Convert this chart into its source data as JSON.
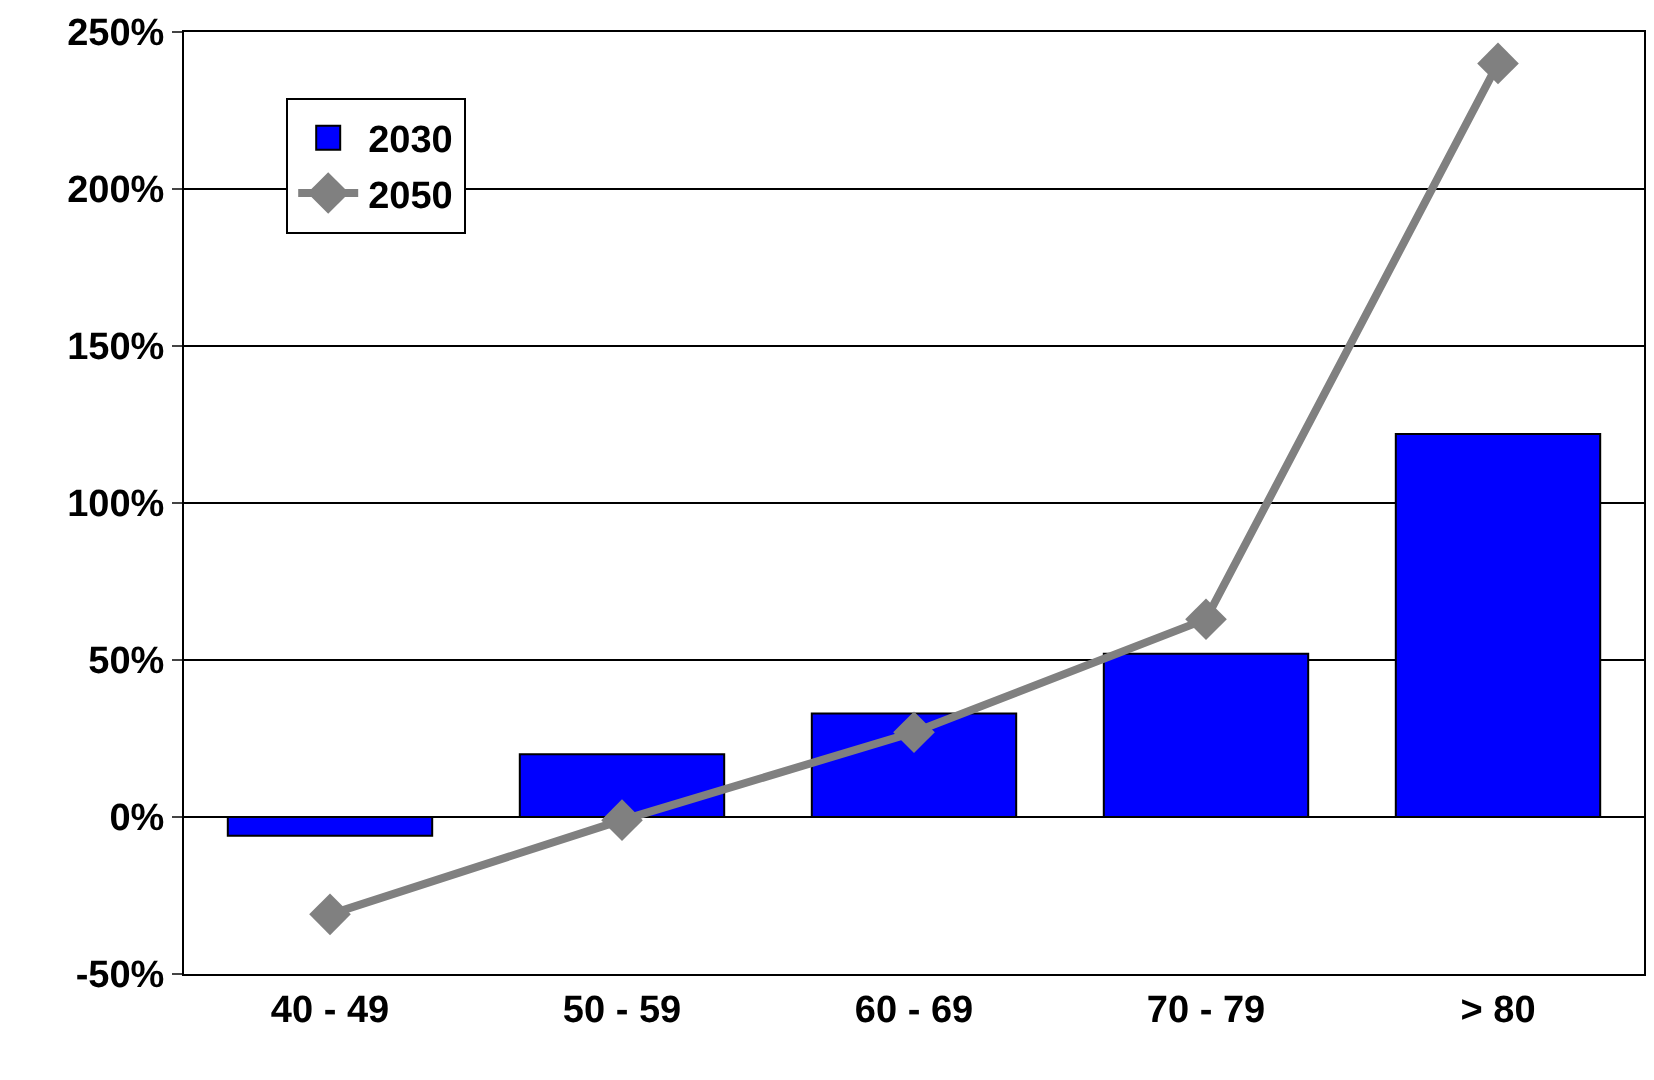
{
  "chart_data": {
    "type": "bar",
    "categories": [
      "40 - 49",
      "50 - 59",
      "60 - 69",
      "70 - 79",
      "> 80"
    ],
    "series": [
      {
        "name": "2030",
        "color": "#0000ff",
        "values": [
          -6,
          20,
          33,
          52,
          122
        ]
      },
      {
        "name": "2050",
        "type": "line",
        "color": "#808080",
        "values": [
          -31,
          -1,
          27,
          63,
          240
        ],
        "marker": "diamond",
        "line_style": "solid"
      }
    ],
    "ylim": [
      -50,
      250
    ],
    "yticks": [
      {
        "value": -50,
        "label": "-50%"
      },
      {
        "value": 0,
        "label": "0%"
      },
      {
        "value": 50,
        "label": "50%"
      },
      {
        "value": 100,
        "label": "100%"
      },
      {
        "value": 150,
        "label": "150%"
      },
      {
        "value": 200,
        "label": "200%"
      },
      {
        "value": 250,
        "label": "250%"
      }
    ],
    "grid": "y",
    "legend": "top left"
  }
}
